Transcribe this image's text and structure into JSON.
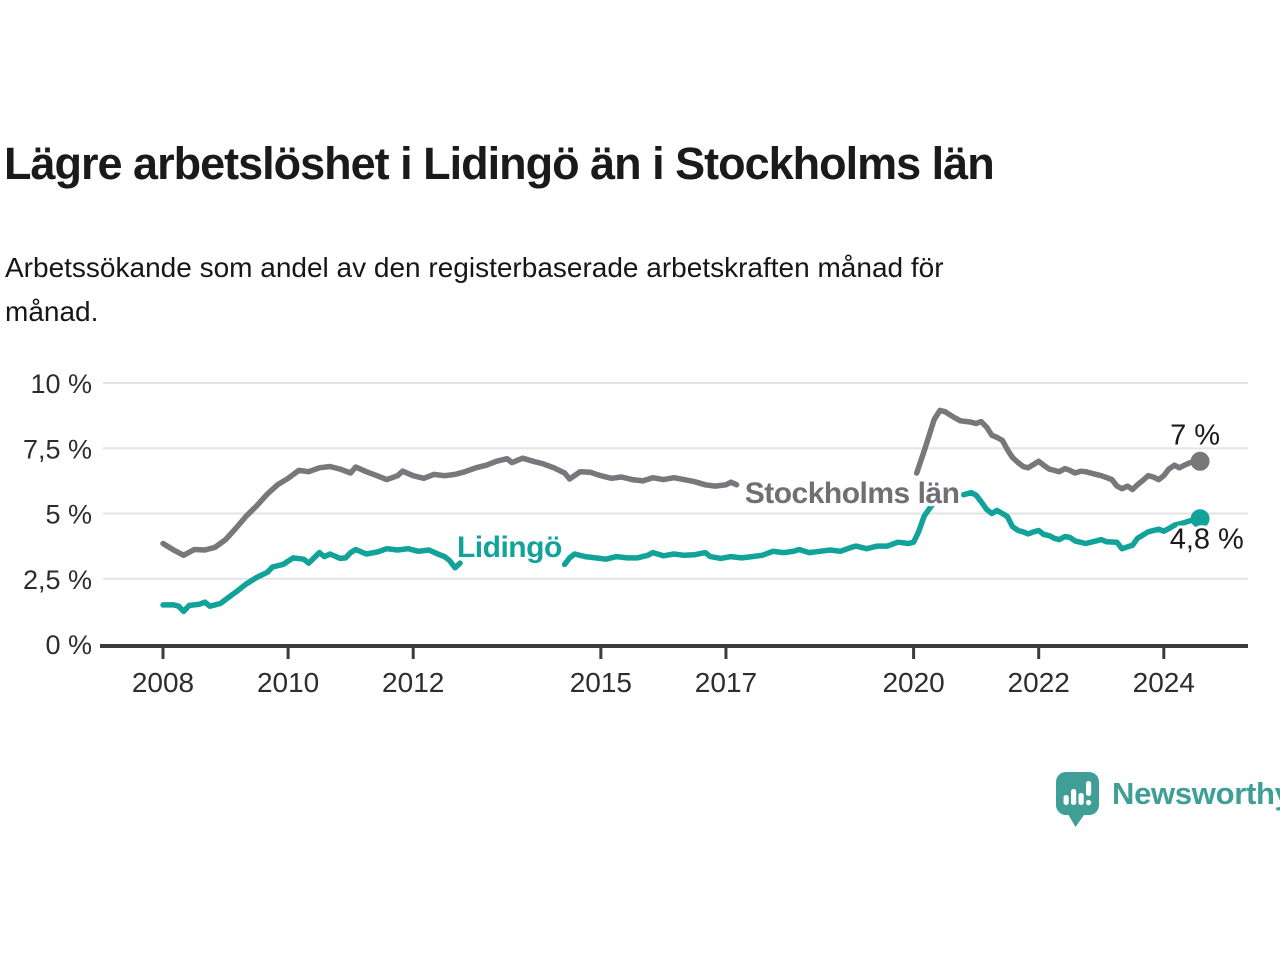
{
  "header": {
    "title": "Lägre arbetslöshet i Lidingö än i Stockholms län",
    "subtitle_lines": [
      "Arbetssökande som andel av den registerbaserade arbetskraften månad för",
      "månad."
    ]
  },
  "footer": {
    "brand": "Newsworthy"
  },
  "colors": {
    "lidingo": "#11a29a",
    "stockholm": "#77777c",
    "stockholm_label": "#6f6f74",
    "gridline": "#e3e3e3",
    "axis": "#3b3b40",
    "tick_text": "#2d2d2d",
    "value_text": "#1a1a1a",
    "logo_teal": "#3f9e95"
  },
  "chart_data": {
    "type": "line",
    "unit": "%",
    "x_axis": {
      "ticks": [
        2008,
        2010,
        2012,
        2015,
        2017,
        2020,
        2022,
        2024
      ],
      "tick_labels": [
        "2008",
        "2010",
        "2012",
        "2015",
        "2017",
        "2020",
        "2022",
        "2024"
      ],
      "range": [
        2007.0,
        2025.4
      ]
    },
    "y_axis": {
      "ticks": [
        0,
        2.5,
        5,
        7.5,
        10
      ],
      "tick_labels": [
        "0 %",
        "2,5 %",
        "5 %",
        "7,5 %",
        "10 %"
      ],
      "range": [
        0,
        10
      ],
      "grid": true
    },
    "series": [
      {
        "name": "Stockholms län",
        "color": "#77777c",
        "label_color": "#6f6f74",
        "end_value": 7,
        "end_label": "7 %",
        "end_label_anchor": {
          "x": 2024.9,
          "y": 7.65
        },
        "inline_label": {
          "text": "Stockholms län",
          "x": 2017.3,
          "y": 5.4
        },
        "segments": [
          [
            [
              2008.0,
              3.85
            ],
            [
              2008.17,
              3.6
            ],
            [
              2008.33,
              3.4
            ],
            [
              2008.5,
              3.62
            ],
            [
              2008.67,
              3.6
            ],
            [
              2008.83,
              3.7
            ],
            [
              2009.0,
              4.0
            ],
            [
              2009.17,
              4.45
            ],
            [
              2009.33,
              4.9
            ],
            [
              2009.5,
              5.3
            ],
            [
              2009.67,
              5.75
            ],
            [
              2009.83,
              6.1
            ],
            [
              2010.0,
              6.35
            ],
            [
              2010.17,
              6.65
            ],
            [
              2010.33,
              6.6
            ],
            [
              2010.5,
              6.75
            ],
            [
              2010.67,
              6.8
            ],
            [
              2010.83,
              6.7
            ],
            [
              2011.0,
              6.55
            ],
            [
              2011.08,
              6.78
            ],
            [
              2011.25,
              6.6
            ],
            [
              2011.42,
              6.45
            ],
            [
              2011.58,
              6.3
            ],
            [
              2011.75,
              6.45
            ],
            [
              2011.83,
              6.62
            ],
            [
              2012.0,
              6.45
            ],
            [
              2012.17,
              6.35
            ],
            [
              2012.33,
              6.5
            ],
            [
              2012.5,
              6.45
            ],
            [
              2012.67,
              6.5
            ],
            [
              2012.83,
              6.6
            ],
            [
              2013.0,
              6.75
            ],
            [
              2013.17,
              6.85
            ],
            [
              2013.33,
              7.0
            ],
            [
              2013.5,
              7.1
            ],
            [
              2013.58,
              6.95
            ],
            [
              2013.75,
              7.12
            ],
            [
              2013.92,
              7.0
            ],
            [
              2014.08,
              6.9
            ],
            [
              2014.25,
              6.75
            ],
            [
              2014.42,
              6.55
            ],
            [
              2014.5,
              6.32
            ],
            [
              2014.67,
              6.6
            ],
            [
              2014.83,
              6.58
            ],
            [
              2015.0,
              6.45
            ],
            [
              2015.17,
              6.35
            ],
            [
              2015.33,
              6.4
            ],
            [
              2015.5,
              6.3
            ],
            [
              2015.67,
              6.25
            ],
            [
              2015.83,
              6.37
            ],
            [
              2016.0,
              6.3
            ],
            [
              2016.17,
              6.37
            ],
            [
              2016.33,
              6.3
            ],
            [
              2016.5,
              6.22
            ],
            [
              2016.67,
              6.1
            ],
            [
              2016.83,
              6.05
            ],
            [
              2017.0,
              6.1
            ],
            [
              2017.08,
              6.2
            ],
            [
              2017.17,
              6.1
            ]
          ],
          [
            [
              2020.05,
              6.55
            ],
            [
              2020.17,
              7.4
            ],
            [
              2020.25,
              8.0
            ],
            [
              2020.33,
              8.6
            ],
            [
              2020.42,
              8.95
            ],
            [
              2020.5,
              8.9
            ],
            [
              2020.58,
              8.78
            ],
            [
              2020.67,
              8.65
            ],
            [
              2020.75,
              8.55
            ],
            [
              2020.92,
              8.5
            ],
            [
              2021.0,
              8.45
            ],
            [
              2021.08,
              8.52
            ],
            [
              2021.17,
              8.3
            ],
            [
              2021.25,
              8.0
            ],
            [
              2021.33,
              7.92
            ],
            [
              2021.42,
              7.8
            ],
            [
              2021.5,
              7.45
            ],
            [
              2021.58,
              7.15
            ],
            [
              2021.67,
              6.95
            ],
            [
              2021.75,
              6.8
            ],
            [
              2021.83,
              6.75
            ],
            [
              2021.92,
              6.88
            ],
            [
              2022.0,
              7.0
            ],
            [
              2022.08,
              6.85
            ],
            [
              2022.17,
              6.7
            ],
            [
              2022.25,
              6.65
            ],
            [
              2022.33,
              6.6
            ],
            [
              2022.42,
              6.72
            ],
            [
              2022.5,
              6.65
            ],
            [
              2022.58,
              6.55
            ],
            [
              2022.67,
              6.62
            ],
            [
              2022.75,
              6.6
            ],
            [
              2022.92,
              6.5
            ],
            [
              2023.0,
              6.45
            ],
            [
              2023.08,
              6.38
            ],
            [
              2023.17,
              6.3
            ],
            [
              2023.25,
              6.05
            ],
            [
              2023.33,
              5.95
            ],
            [
              2023.42,
              6.05
            ],
            [
              2023.5,
              5.92
            ],
            [
              2023.58,
              6.1
            ],
            [
              2023.67,
              6.28
            ],
            [
              2023.75,
              6.45
            ],
            [
              2023.83,
              6.4
            ],
            [
              2023.92,
              6.3
            ],
            [
              2024.0,
              6.45
            ],
            [
              2024.08,
              6.7
            ],
            [
              2024.17,
              6.85
            ],
            [
              2024.25,
              6.75
            ],
            [
              2024.33,
              6.85
            ],
            [
              2024.42,
              6.95
            ],
            [
              2024.58,
              7.0
            ]
          ]
        ]
      },
      {
        "name": "Lidingö",
        "color": "#11a29a",
        "label_color": "#11a29a",
        "end_value": 4.8,
        "end_label": "4,8 %",
        "end_label_anchor": {
          "x": 2025.28,
          "y": 3.65
        },
        "inline_label": {
          "text": "Lidingö",
          "x": 2012.7,
          "y": 3.33
        },
        "segments": [
          [
            [
              2008.0,
              1.5
            ],
            [
              2008.17,
              1.5
            ],
            [
              2008.25,
              1.45
            ],
            [
              2008.33,
              1.25
            ],
            [
              2008.42,
              1.48
            ],
            [
              2008.58,
              1.52
            ],
            [
              2008.67,
              1.6
            ],
            [
              2008.75,
              1.45
            ],
            [
              2008.92,
              1.55
            ],
            [
              2009.0,
              1.7
            ],
            [
              2009.17,
              2.0
            ],
            [
              2009.33,
              2.3
            ],
            [
              2009.5,
              2.55
            ],
            [
              2009.67,
              2.75
            ],
            [
              2009.75,
              2.95
            ],
            [
              2009.92,
              3.05
            ],
            [
              2010.08,
              3.3
            ],
            [
              2010.25,
              3.25
            ],
            [
              2010.33,
              3.1
            ],
            [
              2010.5,
              3.5
            ],
            [
              2010.58,
              3.35
            ],
            [
              2010.67,
              3.45
            ],
            [
              2010.83,
              3.28
            ],
            [
              2010.92,
              3.3
            ],
            [
              2011.0,
              3.5
            ],
            [
              2011.08,
              3.62
            ],
            [
              2011.25,
              3.45
            ],
            [
              2011.42,
              3.52
            ],
            [
              2011.58,
              3.65
            ],
            [
              2011.75,
              3.6
            ],
            [
              2011.92,
              3.65
            ],
            [
              2012.08,
              3.55
            ],
            [
              2012.25,
              3.6
            ],
            [
              2012.42,
              3.42
            ],
            [
              2012.5,
              3.35
            ],
            [
              2012.58,
              3.2
            ],
            [
              2012.67,
              2.92
            ],
            [
              2012.75,
              3.1
            ]
          ],
          [
            [
              2014.42,
              3.05
            ],
            [
              2014.5,
              3.3
            ],
            [
              2014.58,
              3.45
            ],
            [
              2014.75,
              3.35
            ],
            [
              2014.92,
              3.3
            ],
            [
              2015.08,
              3.25
            ],
            [
              2015.25,
              3.35
            ],
            [
              2015.42,
              3.3
            ],
            [
              2015.58,
              3.3
            ],
            [
              2015.75,
              3.4
            ],
            [
              2015.83,
              3.5
            ],
            [
              2016.0,
              3.38
            ],
            [
              2016.17,
              3.45
            ],
            [
              2016.33,
              3.4
            ],
            [
              2016.5,
              3.42
            ],
            [
              2016.67,
              3.5
            ],
            [
              2016.75,
              3.35
            ],
            [
              2016.92,
              3.28
            ],
            [
              2017.08,
              3.35
            ],
            [
              2017.25,
              3.3
            ],
            [
              2017.42,
              3.35
            ],
            [
              2017.58,
              3.4
            ],
            [
              2017.75,
              3.55
            ],
            [
              2017.92,
              3.5
            ],
            [
              2018.08,
              3.55
            ],
            [
              2018.17,
              3.62
            ],
            [
              2018.33,
              3.5
            ],
            [
              2018.5,
              3.55
            ],
            [
              2018.67,
              3.6
            ],
            [
              2018.83,
              3.55
            ],
            [
              2019.0,
              3.7
            ],
            [
              2019.08,
              3.75
            ],
            [
              2019.25,
              3.65
            ],
            [
              2019.42,
              3.75
            ],
            [
              2019.58,
              3.75
            ],
            [
              2019.75,
              3.9
            ],
            [
              2019.92,
              3.85
            ],
            [
              2020.0,
              3.9
            ],
            [
              2020.08,
              4.3
            ],
            [
              2020.17,
              4.9
            ],
            [
              2020.3,
              5.35
            ]
          ],
          [
            [
              2020.8,
              5.72
            ],
            [
              2020.92,
              5.8
            ],
            [
              2021.0,
              5.7
            ],
            [
              2021.08,
              5.45
            ],
            [
              2021.17,
              5.15
            ],
            [
              2021.25,
              5.0
            ],
            [
              2021.33,
              5.12
            ],
            [
              2021.42,
              5.0
            ],
            [
              2021.5,
              4.88
            ],
            [
              2021.58,
              4.5
            ],
            [
              2021.67,
              4.35
            ],
            [
              2021.75,
              4.3
            ],
            [
              2021.83,
              4.22
            ],
            [
              2021.92,
              4.3
            ],
            [
              2022.0,
              4.35
            ],
            [
              2022.08,
              4.2
            ],
            [
              2022.17,
              4.15
            ],
            [
              2022.25,
              4.05
            ],
            [
              2022.33,
              4.0
            ],
            [
              2022.42,
              4.12
            ],
            [
              2022.5,
              4.08
            ],
            [
              2022.58,
              3.95
            ],
            [
              2022.75,
              3.85
            ],
            [
              2022.92,
              3.95
            ],
            [
              2023.0,
              4.0
            ],
            [
              2023.08,
              3.92
            ],
            [
              2023.25,
              3.9
            ],
            [
              2023.33,
              3.65
            ],
            [
              2023.42,
              3.72
            ],
            [
              2023.5,
              3.78
            ],
            [
              2023.58,
              4.05
            ],
            [
              2023.75,
              4.3
            ],
            [
              2023.92,
              4.4
            ],
            [
              2024.0,
              4.32
            ],
            [
              2024.08,
              4.42
            ],
            [
              2024.17,
              4.55
            ],
            [
              2024.33,
              4.65
            ],
            [
              2024.42,
              4.72
            ],
            [
              2024.58,
              4.8
            ]
          ]
        ]
      }
    ]
  }
}
